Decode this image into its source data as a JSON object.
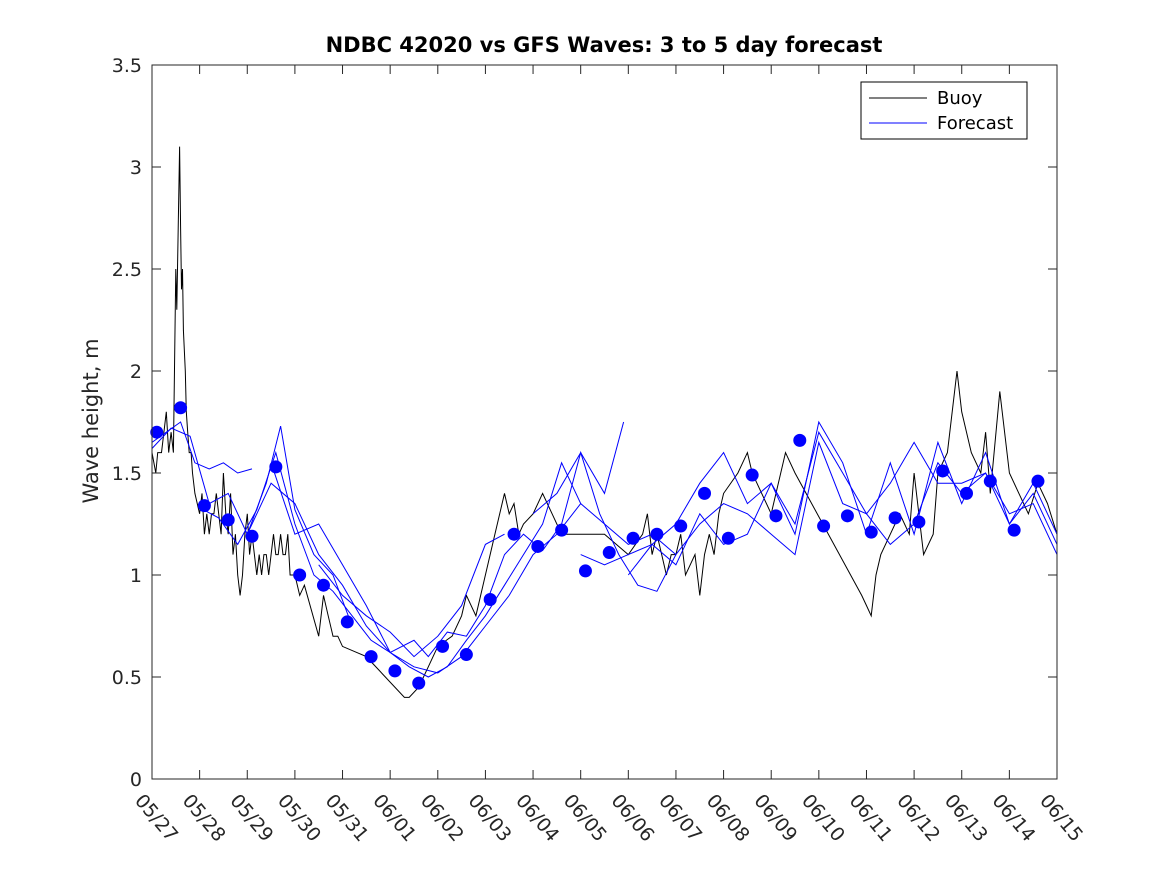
{
  "colors": {
    "buoy": "#000000",
    "forecast": "#0000ff",
    "axis": "#262626",
    "background": "#ffffff"
  },
  "chart_data": {
    "type": "line",
    "title": "NDBC 42020 vs GFS Waves: 3 to 5 day forecast",
    "xlabel": "",
    "ylabel": "Wave height, m",
    "xlim": [
      0,
      19
    ],
    "ylim": [
      0,
      3.5
    ],
    "x_tick_labels": [
      "05/27",
      "05/28",
      "05/29",
      "05/30",
      "05/31",
      "06/01",
      "06/02",
      "06/03",
      "06/04",
      "06/05",
      "06/06",
      "06/07",
      "06/08",
      "06/09",
      "06/10",
      "06/11",
      "06/12",
      "06/13",
      "06/14",
      "06/15"
    ],
    "y_ticks": [
      0,
      0.5,
      1,
      1.5,
      2,
      2.5,
      3,
      3.5
    ],
    "y_tick_labels": [
      "0",
      "0.5",
      "1",
      "1.5",
      "2",
      "2.5",
      "3",
      "3.5"
    ],
    "grid": false,
    "legend": {
      "position": "top-right",
      "entries": [
        "Buoy",
        "Forecast"
      ]
    },
    "series": [
      {
        "name": "Buoy",
        "style": "line",
        "x": [
          0,
          0.08,
          0.12,
          0.2,
          0.3,
          0.35,
          0.4,
          0.45,
          0.5,
          0.52,
          0.55,
          0.58,
          0.6,
          0.62,
          0.64,
          0.66,
          0.7,
          0.72,
          0.75,
          0.78,
          0.82,
          0.85,
          0.9,
          1.0,
          1.05,
          1.1,
          1.15,
          1.2,
          1.25,
          1.3,
          1.35,
          1.4,
          1.45,
          1.5,
          1.55,
          1.6,
          1.65,
          1.7,
          1.75,
          1.8,
          1.85,
          1.9,
          1.95,
          2.0,
          2.05,
          2.1,
          2.15,
          2.2,
          2.25,
          2.3,
          2.35,
          2.4,
          2.45,
          2.5,
          2.55,
          2.6,
          2.65,
          2.7,
          2.75,
          2.8,
          2.85,
          2.9,
          3.0,
          3.1,
          3.2,
          3.5,
          3.6,
          3.7,
          3.8,
          3.9,
          4.0,
          4.5,
          5.3,
          5.4,
          5.6,
          5.8,
          6.0,
          6.3,
          6.5,
          6.6,
          6.8,
          7.0,
          7.2,
          7.4,
          7.5,
          7.6,
          7.7,
          7.8,
          8.0,
          8.2,
          8.4,
          8.6,
          8.9,
          9.0,
          9.5,
          10.0,
          10.3,
          10.4,
          10.5,
          10.6,
          10.7,
          10.8,
          10.9,
          11.0,
          11.1,
          11.2,
          11.4,
          11.5,
          11.6,
          11.7,
          11.8,
          11.9,
          12.0,
          12.3,
          12.5,
          12.6,
          12.8,
          13.0,
          13.3,
          13.5,
          14.9,
          15.0,
          15.1,
          15.2,
          15.3,
          15.5,
          15.7,
          15.9,
          16.0,
          16.2,
          16.4,
          16.5,
          16.7,
          16.9,
          17.0,
          17.2,
          17.4,
          17.5,
          17.6,
          17.8,
          18.0,
          18.2,
          18.4,
          18.6,
          18.8,
          19.0
        ],
        "y": [
          1.6,
          1.5,
          1.6,
          1.6,
          1.8,
          1.6,
          1.7,
          1.6,
          2.5,
          2.3,
          2.7,
          3.1,
          2.7,
          2.4,
          2.5,
          2.2,
          2.0,
          1.8,
          1.7,
          1.6,
          1.6,
          1.5,
          1.4,
          1.3,
          1.4,
          1.2,
          1.3,
          1.2,
          1.3,
          1.3,
          1.4,
          1.3,
          1.2,
          1.5,
          1.3,
          1.2,
          1.4,
          1.1,
          1.2,
          1.0,
          0.9,
          1.0,
          1.2,
          1.3,
          1.1,
          1.2,
          1.1,
          1.0,
          1.1,
          1.0,
          1.1,
          1.1,
          1.0,
          1.1,
          1.2,
          1.1,
          1.1,
          1.2,
          1.1,
          1.1,
          1.2,
          1.0,
          1.0,
          0.9,
          0.95,
          0.7,
          0.9,
          0.8,
          0.7,
          0.7,
          0.65,
          0.6,
          0.4,
          0.4,
          0.45,
          0.55,
          0.65,
          0.7,
          0.8,
          0.9,
          0.8,
          1.0,
          1.2,
          1.4,
          1.3,
          1.35,
          1.2,
          1.25,
          1.3,
          1.4,
          1.3,
          1.2,
          1.2,
          1.2,
          1.2,
          1.1,
          1.2,
          1.3,
          1.1,
          1.2,
          1.1,
          1.0,
          1.1,
          1.1,
          1.2,
          1.0,
          1.1,
          0.9,
          1.1,
          1.2,
          1.1,
          1.3,
          1.4,
          1.5,
          1.6,
          1.5,
          1.4,
          1.3,
          1.6,
          1.5,
          0.9,
          0.85,
          0.8,
          1.0,
          1.1,
          1.2,
          1.3,
          1.2,
          1.5,
          1.1,
          1.2,
          1.5,
          1.6,
          2.0,
          1.8,
          1.6,
          1.5,
          1.7,
          1.4,
          1.9,
          1.5,
          1.4,
          1.3,
          1.45,
          1.35,
          1.2
        ]
      },
      {
        "name": "Forecast",
        "style": "line",
        "x": [
          0,
          0.3,
          0.6,
          0.9,
          1.2,
          1.5,
          1.8,
          2.1
        ],
        "y": [
          1.65,
          1.7,
          1.75,
          1.55,
          1.52,
          1.55,
          1.5,
          1.52
        ]
      },
      {
        "name": "Forecast",
        "style": "line",
        "x": [
          0,
          0.4,
          0.8,
          1.2,
          1.6,
          2.0,
          2.4,
          2.7,
          3.0,
          3.4,
          3.8,
          4.2
        ],
        "y": [
          1.62,
          1.72,
          1.68,
          1.35,
          1.4,
          1.2,
          1.45,
          1.73,
          1.32,
          1.1,
          1.0,
          0.75
        ]
      },
      {
        "name": "Forecast",
        "style": "line",
        "x": [
          1.0,
          1.4,
          1.8,
          2.2,
          2.6,
          3.0,
          3.4,
          3.8,
          4.2,
          4.6,
          5.0,
          5.4,
          5.8,
          6.2,
          6.6,
          7.0,
          7.4,
          7.8,
          8.2,
          8.6,
          9.0
        ],
        "y": [
          1.33,
          1.28,
          1.15,
          1.32,
          1.6,
          1.25,
          1.0,
          0.92,
          0.8,
          0.68,
          0.62,
          0.55,
          0.5,
          0.55,
          0.68,
          0.8,
          0.95,
          1.1,
          1.25,
          1.55,
          1.35
        ]
      },
      {
        "name": "Forecast",
        "style": "line",
        "x": [
          2.0,
          2.5,
          3.0,
          3.5,
          4.0,
          4.5,
          5.0,
          5.5,
          6.0,
          6.5,
          7.0,
          7.5,
          8.0,
          8.5,
          9.0,
          9.5,
          10.0,
          10.5,
          11.0
        ],
        "y": [
          1.2,
          1.45,
          1.35,
          1.1,
          0.95,
          0.75,
          0.62,
          0.55,
          0.52,
          0.6,
          0.75,
          0.9,
          1.1,
          1.2,
          1.35,
          1.25,
          1.15,
          1.2,
          1.1
        ]
      },
      {
        "name": "Forecast",
        "style": "line",
        "x": [
          2.5,
          3.0,
          3.5,
          4.0,
          4.5,
          5.0,
          5.5,
          5.8,
          6.2,
          6.6,
          7.0,
          7.4,
          7.8,
          8.2,
          8.6,
          9.0,
          9.4,
          9.8,
          10.2,
          10.6,
          11.0
        ],
        "y": [
          1.55,
          1.2,
          1.25,
          1.05,
          0.85,
          0.62,
          0.68,
          0.6,
          0.72,
          0.7,
          0.85,
          1.1,
          1.2,
          1.12,
          1.25,
          1.6,
          1.3,
          1.1,
          0.95,
          0.92,
          1.1
        ]
      },
      {
        "name": "Forecast",
        "style": "line",
        "x": [
          3.5,
          4.0,
          4.5,
          5.0,
          5.5,
          6.0,
          6.5,
          7.0,
          7.4
        ],
        "y": [
          1.05,
          0.9,
          0.8,
          0.72,
          0.6,
          0.7,
          0.85,
          1.15,
          1.2
        ]
      },
      {
        "name": "Forecast",
        "style": "line",
        "x": [
          8.0,
          8.5,
          9.0,
          9.5,
          9.9
        ],
        "y": [
          1.3,
          1.4,
          1.6,
          1.4,
          1.75
        ]
      },
      {
        "name": "Forecast",
        "style": "line",
        "x": [
          9.0,
          9.5,
          10.0,
          10.5,
          11.0,
          11.5,
          12.0,
          12.5,
          13.0,
          13.5,
          14.0,
          14.5,
          15.0,
          15.5,
          16.0,
          16.5,
          17.0,
          17.5,
          18.0,
          18.5,
          19.0
        ],
        "y": [
          1.1,
          1.05,
          1.1,
          1.15,
          1.25,
          1.45,
          1.6,
          1.35,
          1.45,
          1.25,
          1.7,
          1.5,
          1.3,
          1.45,
          1.65,
          1.45,
          1.45,
          1.5,
          1.3,
          1.35,
          1.1
        ]
      },
      {
        "name": "Forecast",
        "style": "line",
        "x": [
          10.0,
          10.5,
          11.0,
          11.5,
          12.0,
          12.5,
          13.0,
          13.5,
          14.0,
          14.5,
          15.0,
          15.5,
          16.0,
          16.5,
          17.0,
          17.5,
          18.0,
          18.5,
          19.0
        ],
        "y": [
          1.0,
          1.15,
          1.05,
          1.3,
          1.15,
          1.2,
          1.45,
          1.2,
          1.75,
          1.55,
          1.2,
          1.55,
          1.2,
          1.65,
          1.35,
          1.6,
          1.25,
          1.45,
          1.2
        ]
      },
      {
        "name": "Forecast",
        "style": "line",
        "x": [
          11.0,
          11.5,
          12.0,
          12.5,
          13.0,
          13.5,
          14.0,
          14.5,
          15.0,
          15.5,
          16.0,
          16.5,
          17.0,
          17.5,
          18.0,
          18.5,
          19.0
        ],
        "y": [
          1.1,
          1.25,
          1.35,
          1.3,
          1.2,
          1.1,
          1.65,
          1.35,
          1.3,
          1.15,
          1.25,
          1.55,
          1.4,
          1.5,
          1.25,
          1.4,
          1.15
        ]
      },
      {
        "name": "Forecast",
        "style": "markers",
        "x": [
          0.1,
          0.6,
          1.1,
          1.6,
          2.1,
          2.6,
          3.1,
          3.6,
          4.1,
          4.6,
          5.1,
          5.6,
          6.1,
          6.6,
          7.1,
          7.6,
          8.1,
          8.6,
          9.1,
          9.6,
          10.1,
          10.6,
          11.1,
          11.6,
          12.1,
          12.6,
          13.1,
          13.6,
          14.1,
          14.6,
          15.1,
          15.6,
          16.1,
          16.6,
          17.1,
          17.6,
          18.1,
          18.6
        ],
        "y": [
          1.7,
          1.82,
          1.34,
          1.27,
          1.19,
          1.53,
          1.0,
          0.95,
          0.77,
          0.6,
          0.53,
          0.47,
          0.65,
          0.61,
          0.88,
          1.2,
          1.14,
          1.22,
          1.02,
          1.11,
          1.18,
          1.2,
          1.24,
          1.4,
          1.18,
          1.49,
          1.29,
          1.66,
          1.24,
          1.29,
          1.21,
          1.28,
          1.26,
          1.51,
          1.4,
          1.46,
          1.22,
          1.46
        ]
      }
    ]
  }
}
